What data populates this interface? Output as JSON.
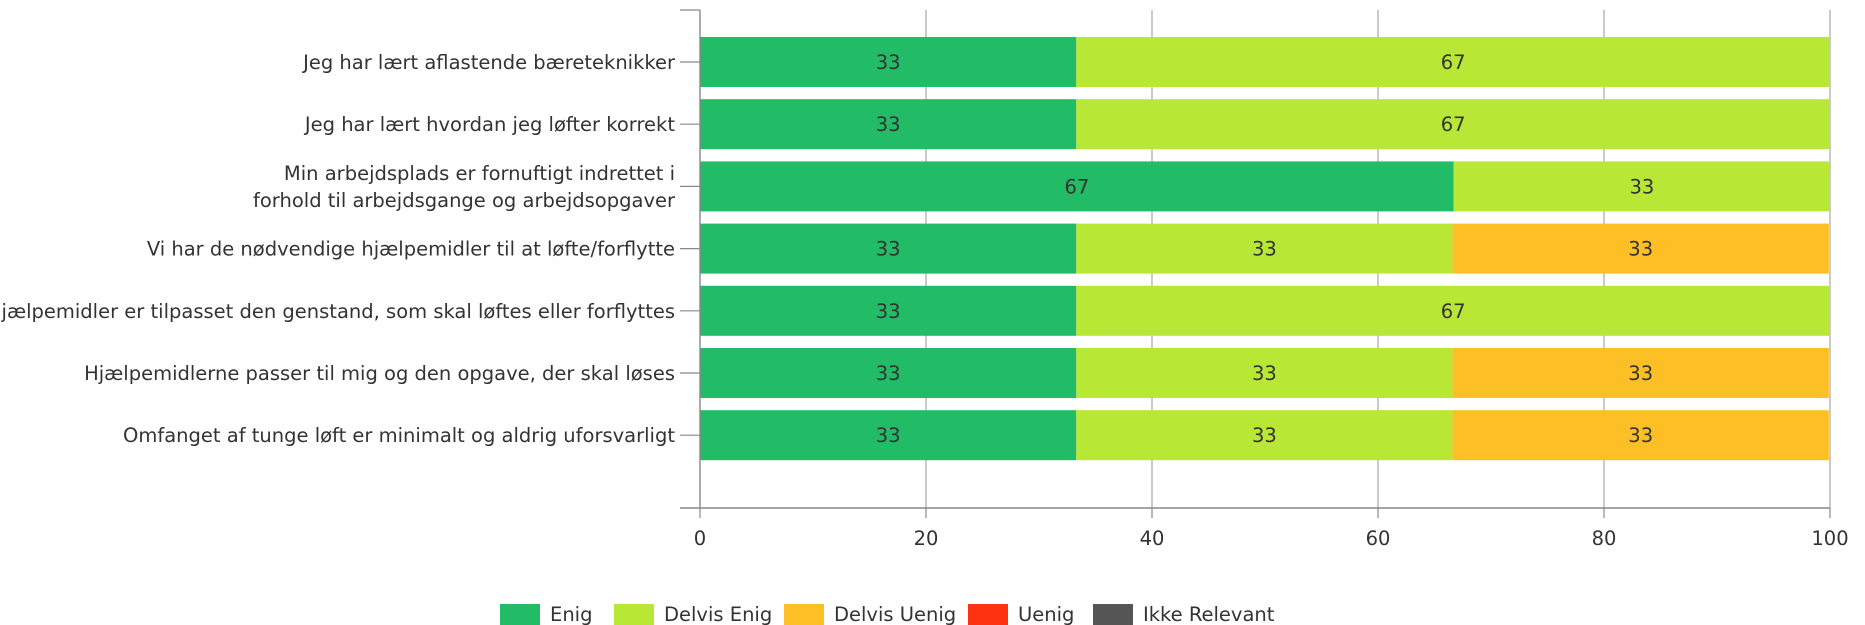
{
  "chart_data": {
    "type": "bar",
    "orientation": "horizontal",
    "stacked": true,
    "categories": [
      [
        "Jeg har lært aflastende bæreteknikker"
      ],
      [
        "Jeg har lært hvordan jeg løfter korrekt"
      ],
      [
        "Min arbejdsplads er fornuftigt indrettet i",
        "forhold til arbejdsgange og arbejdsopgaver"
      ],
      [
        "Vi har de nødvendige hjælpemidler til at løfte/forflytte"
      ],
      [
        "Hjælpemidler er tilpasset den genstand, som skal løftes eller forflyttes"
      ],
      [
        "Hjælpemidlerne passer til mig og den opgave, der skal løses"
      ],
      [
        "Omfanget af tunge løft er minimalt og aldrig uforsvarligt"
      ]
    ],
    "series": [
      {
        "name": "Enig",
        "color": "#22bb66",
        "values": [
          33.3,
          33.3,
          66.7,
          33.3,
          33.3,
          33.3,
          33.3
        ],
        "labels": [
          "33",
          "33",
          "67",
          "33",
          "33",
          "33",
          "33"
        ]
      },
      {
        "name": "Delvis Enig",
        "color": "#b8e835",
        "values": [
          66.7,
          66.7,
          33.3,
          33.3,
          66.7,
          33.3,
          33.3
        ],
        "labels": [
          "67",
          "67",
          "33",
          "33",
          "67",
          "33",
          "33"
        ]
      },
      {
        "name": "Delvis Uenig",
        "color": "#fcbf26",
        "values": [
          0,
          0,
          0,
          33.3,
          0,
          33.3,
          33.3
        ],
        "labels": [
          "",
          "",
          "",
          "33",
          "",
          "33",
          "33"
        ]
      },
      {
        "name": "Uenig",
        "color": "#ff3311",
        "values": [
          0,
          0,
          0,
          0,
          0,
          0,
          0
        ],
        "labels": [
          "",
          "",
          "",
          "",
          "",
          "",
          ""
        ]
      },
      {
        "name": "Ikke Relevant",
        "color": "#555555",
        "values": [
          0,
          0,
          0,
          0,
          0,
          0,
          0
        ],
        "labels": [
          "",
          "",
          "",
          "",
          "",
          "",
          ""
        ]
      }
    ],
    "xlim": [
      0,
      100
    ],
    "xticks": [
      "0",
      "20",
      "40",
      "60",
      "80",
      "100"
    ],
    "grid": true,
    "legend_position": "bottom"
  }
}
